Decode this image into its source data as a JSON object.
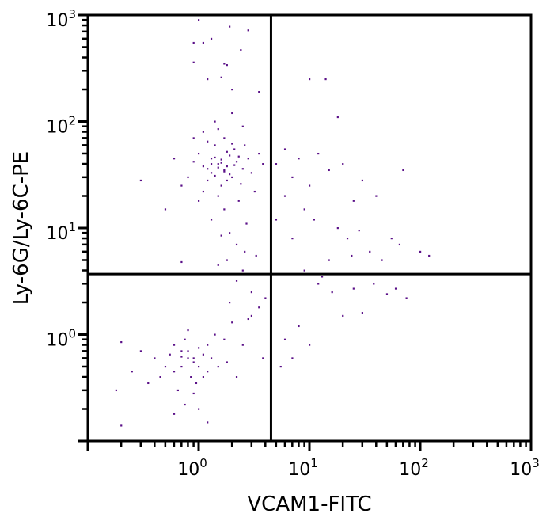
{
  "chart_data": {
    "type": "scatter",
    "title": "",
    "xlabel": "VCAM1-FITC",
    "ylabel": "Ly-6G/Ly-6C-PE",
    "xscale": "log",
    "yscale": "log",
    "xlim": [
      0.1,
      1000
    ],
    "ylim": [
      0.1,
      1000
    ],
    "x_ticks": [
      {
        "base": "10",
        "exp": "0",
        "value": 1
      },
      {
        "base": "10",
        "exp": "1",
        "value": 10
      },
      {
        "base": "10",
        "exp": "2",
        "value": 100
      },
      {
        "base": "10",
        "exp": "3",
        "value": 1000
      }
    ],
    "y_ticks": [
      {
        "base": "10",
        "exp": "0",
        "value": 1
      },
      {
        "base": "10",
        "exp": "1",
        "value": 10
      },
      {
        "base": "10",
        "exp": "2",
        "value": 100
      },
      {
        "base": "10",
        "exp": "3",
        "value": 1000
      }
    ],
    "grid": false,
    "quadrant_gates": {
      "x": 4.5,
      "y": 3.7
    },
    "point_color": "#5a1088",
    "points": [
      [
        1.5,
        40
      ],
      [
        1.7,
        35
      ],
      [
        1.3,
        45
      ],
      [
        2.0,
        30
      ],
      [
        1.2,
        28
      ],
      [
        1.8,
        52
      ],
      [
        1.4,
        60
      ],
      [
        2.2,
        42
      ],
      [
        1.1,
        38
      ],
      [
        1.6,
        25
      ],
      [
        1.9,
        48
      ],
      [
        2.5,
        36
      ],
      [
        1.0,
        50
      ],
      [
        1.3,
        33
      ],
      [
        1.7,
        70
      ],
      [
        2.1,
        55
      ],
      [
        0.9,
        42
      ],
      [
        1.5,
        20
      ],
      [
        2.4,
        26
      ],
      [
        1.2,
        65
      ],
      [
        1.8,
        38
      ],
      [
        1.6,
        44
      ],
      [
        1.4,
        31
      ],
      [
        2.0,
        62
      ],
      [
        2.8,
        45
      ],
      [
        3.0,
        33
      ],
      [
        1.1,
        22
      ],
      [
        0.8,
        30
      ],
      [
        1.5,
        85
      ],
      [
        2.3,
        18
      ],
      [
        1.7,
        15
      ],
      [
        3.5,
        50
      ],
      [
        2.6,
        60
      ],
      [
        1.3,
        12
      ],
      [
        1.9,
        9
      ],
      [
        2.2,
        7
      ],
      [
        1.6,
        8.5
      ],
      [
        2.7,
        11
      ],
      [
        1.0,
        18
      ],
      [
        0.7,
        25
      ],
      [
        0.6,
        45
      ],
      [
        3.2,
        22
      ],
      [
        3.8,
        40
      ],
      [
        1.4,
        100
      ],
      [
        2.0,
        120
      ],
      [
        1.1,
        80
      ],
      [
        0.9,
        70
      ],
      [
        2.5,
        90
      ],
      [
        1.8,
        28
      ],
      [
        1.5,
        37
      ],
      [
        1.6,
        41
      ],
      [
        1.7,
        34
      ],
      [
        1.4,
        46
      ],
      [
        2.1,
        39
      ],
      [
        1.3,
        40
      ],
      [
        1.9,
        32
      ],
      [
        2.3,
        47
      ],
      [
        1.2,
        36
      ],
      [
        0.5,
        15
      ],
      [
        0.3,
        28
      ],
      [
        1.8,
        5
      ],
      [
        2.5,
        4
      ],
      [
        3.0,
        2.5
      ],
      [
        2.2,
        3.2
      ],
      [
        1.5,
        4.5
      ],
      [
        3.5,
        1.8
      ],
      [
        2.8,
        1.4
      ],
      [
        4.0,
        2.2
      ],
      [
        1.9,
        2.0
      ],
      [
        2.6,
        6
      ],
      [
        0.7,
        4.8
      ],
      [
        3.3,
        5.5
      ],
      [
        0.8,
        0.6
      ],
      [
        0.9,
        0.55
      ],
      [
        0.7,
        0.7
      ],
      [
        1.0,
        0.5
      ],
      [
        0.6,
        0.45
      ],
      [
        1.2,
        0.8
      ],
      [
        0.85,
        0.4
      ],
      [
        0.75,
        0.9
      ],
      [
        1.1,
        0.65
      ],
      [
        0.5,
        0.5
      ],
      [
        0.95,
        0.35
      ],
      [
        1.3,
        0.6
      ],
      [
        0.65,
        0.3
      ],
      [
        0.55,
        0.65
      ],
      [
        1.4,
        1.0
      ],
      [
        0.8,
        1.1
      ],
      [
        1.0,
        0.75
      ],
      [
        0.45,
        0.4
      ],
      [
        0.7,
        0.5
      ],
      [
        1.5,
        0.5
      ],
      [
        0.9,
        0.28
      ],
      [
        0.6,
        0.8
      ],
      [
        1.2,
        0.45
      ],
      [
        0.4,
        0.6
      ],
      [
        1.7,
        0.9
      ],
      [
        2.0,
        1.3
      ],
      [
        1.8,
        0.55
      ],
      [
        0.35,
        0.35
      ],
      [
        0.3,
        0.7
      ],
      [
        0.25,
        0.45
      ],
      [
        0.2,
        0.85
      ],
      [
        0.18,
        0.3
      ],
      [
        0.75,
        0.22
      ],
      [
        1.0,
        0.2
      ],
      [
        0.6,
        0.18
      ],
      [
        1.2,
        0.15
      ],
      [
        0.9,
        0.6
      ],
      [
        0.8,
        0.7
      ],
      [
        1.1,
        0.4
      ],
      [
        0.7,
        0.62
      ],
      [
        2.5,
        0.8
      ],
      [
        3.0,
        1.5
      ],
      [
        2.2,
        0.4
      ],
      [
        3.8,
        0.6
      ],
      [
        0.2,
        0.14
      ],
      [
        1.0,
        900
      ],
      [
        0.9,
        550
      ],
      [
        1.1,
        550
      ],
      [
        1.3,
        600
      ],
      [
        1.9,
        780
      ],
      [
        2.8,
        720
      ],
      [
        2.4,
        470
      ],
      [
        1.7,
        350
      ],
      [
        0.9,
        360
      ],
      [
        1.8,
        340
      ],
      [
        1.2,
        250
      ],
      [
        1.6,
        260
      ],
      [
        2.0,
        200
      ],
      [
        3.5,
        190
      ],
      [
        10,
        250
      ],
      [
        14,
        250
      ],
      [
        5,
        40
      ],
      [
        6,
        55
      ],
      [
        7,
        30
      ],
      [
        8,
        45
      ],
      [
        10,
        25
      ],
      [
        12,
        50
      ],
      [
        15,
        35
      ],
      [
        20,
        40
      ],
      [
        25,
        18
      ],
      [
        30,
        28
      ],
      [
        6,
        20
      ],
      [
        9,
        15
      ],
      [
        11,
        12
      ],
      [
        18,
        10
      ],
      [
        22,
        8
      ],
      [
        28,
        9.5
      ],
      [
        35,
        6
      ],
      [
        45,
        5
      ],
      [
        55,
        8
      ],
      [
        65,
        7
      ],
      [
        100,
        6
      ],
      [
        120,
        5.5
      ],
      [
        70,
        35
      ],
      [
        40,
        20
      ],
      [
        18,
        110
      ],
      [
        5,
        12
      ],
      [
        7,
        8
      ],
      [
        9,
        4
      ],
      [
        12,
        3
      ],
      [
        16,
        2.5
      ],
      [
        25,
        2.7
      ],
      [
        30,
        1.6
      ],
      [
        50,
        2.4
      ],
      [
        75,
        2.2
      ],
      [
        20,
        1.5
      ],
      [
        8,
        1.2
      ],
      [
        6,
        0.9
      ],
      [
        10,
        0.8
      ],
      [
        5.5,
        0.5
      ],
      [
        7,
        0.6
      ],
      [
        13,
        3.5
      ],
      [
        38,
        3
      ],
      [
        60,
        2.7
      ],
      [
        15,
        5
      ],
      [
        24,
        5.5
      ]
    ]
  }
}
